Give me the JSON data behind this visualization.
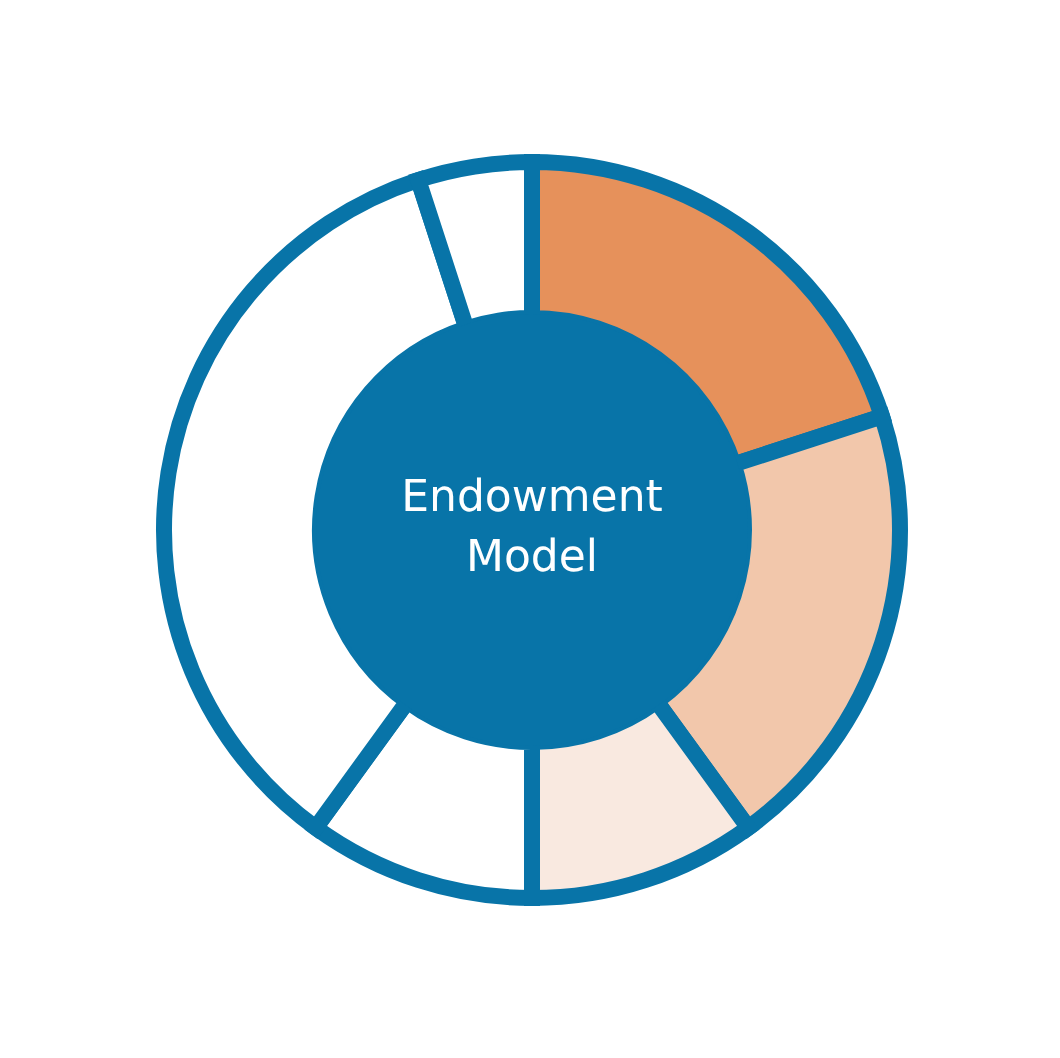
{
  "chart_data": {
    "type": "donut",
    "title": "Endowment Model",
    "categories": [
      null,
      null,
      null,
      null,
      null,
      null
    ],
    "values": [
      20,
      20,
      10,
      10,
      35,
      5
    ],
    "colors": [
      "#e6915b",
      "#f2c7ab",
      "#f9e9e0",
      "#ffffff",
      "#ffffff",
      "#ffffff"
    ]
  }
}
